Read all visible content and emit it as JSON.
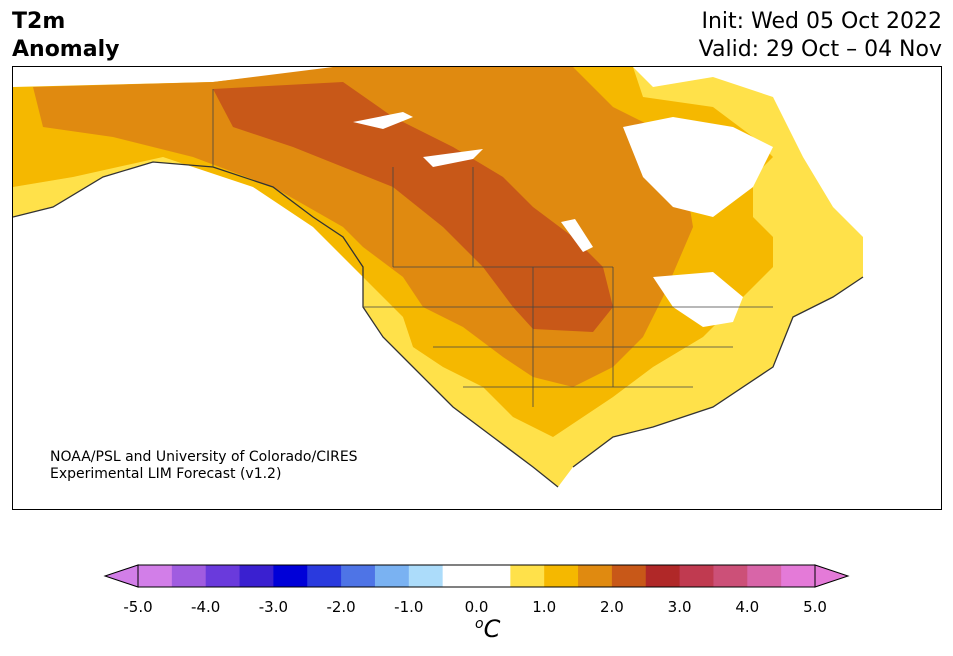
{
  "header": {
    "title_line1": "T2m",
    "title_line2": "Anomaly",
    "init": "Init: Wed 05 Oct 2022",
    "valid": "Valid: 29 Oct – 04 Nov"
  },
  "map": {
    "credit_line1": "NOAA/PSL and University of Colorado/CIRES",
    "credit_line2": "Experimental LIM Forecast (v1.2)"
  },
  "colorbar": {
    "unit_base": "C",
    "unit_sup": "o",
    "ticks": [
      "-5.0",
      "-4.0",
      "-3.0",
      "-2.0",
      "-1.0",
      "0.0",
      "1.0",
      "2.0",
      "3.0",
      "4.0",
      "5.0"
    ],
    "colors": [
      "#d27ee8",
      "#a05ce0",
      "#6a3adc",
      "#3a20d0",
      "#0000d8",
      "#2a3ade",
      "#4e74e6",
      "#7ab2f2",
      "#acdcfa",
      "#ffffff",
      "#ffffff",
      "#ffe14a",
      "#f5b800",
      "#e08a10",
      "#c85818",
      "#b02828",
      "#c03a50",
      "#cc5078",
      "#d865a8",
      "#e47ad8"
    ],
    "under_color": "#d27ee8",
    "over_color": "#e47ad8"
  }
}
